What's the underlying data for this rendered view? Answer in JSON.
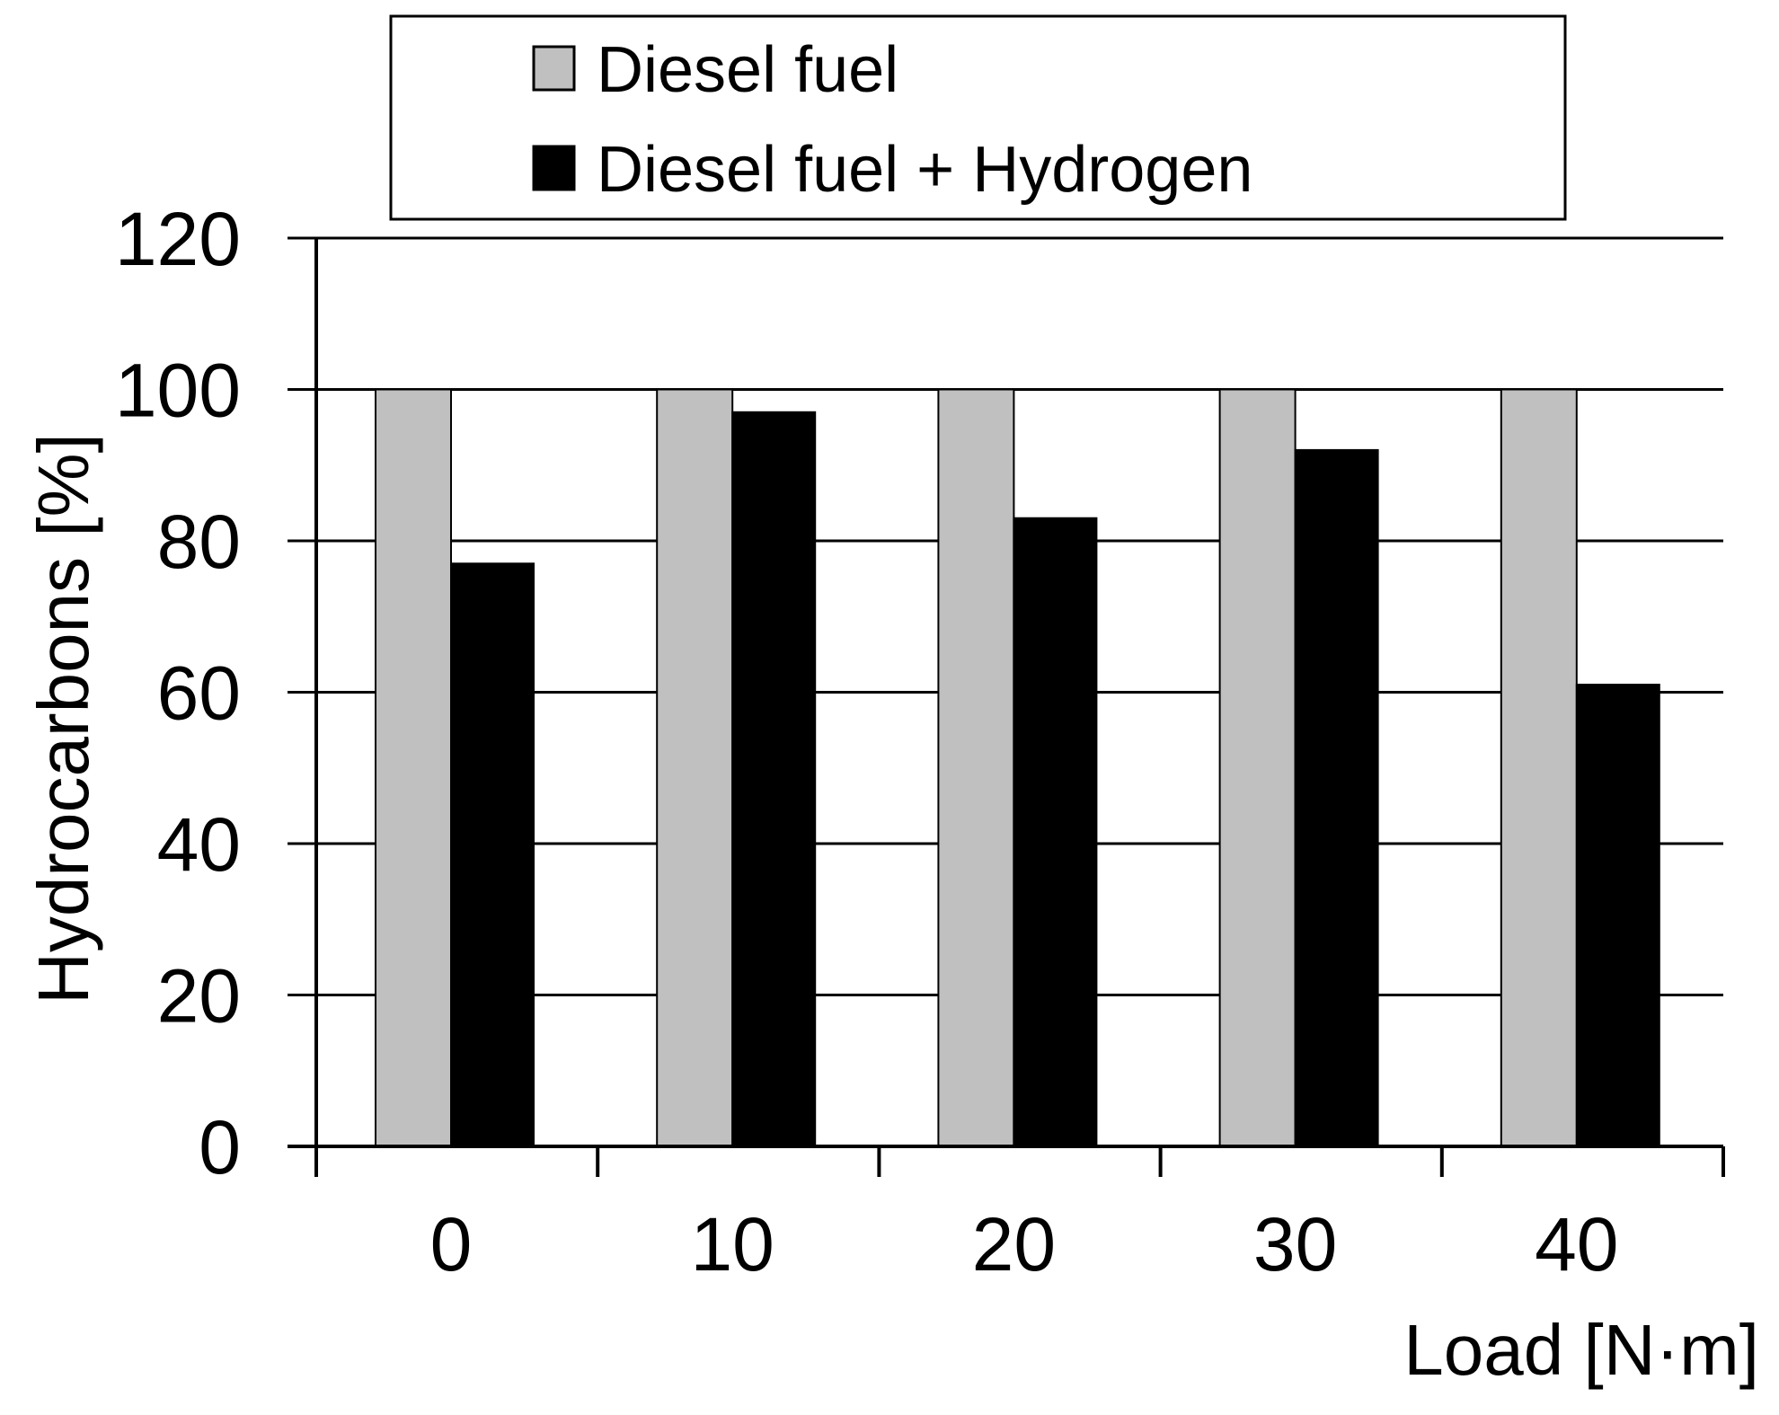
{
  "chart_data": {
    "type": "bar",
    "categories": [
      "0",
      "10",
      "20",
      "30",
      "40"
    ],
    "series": [
      {
        "name": "Diesel fuel",
        "values": [
          100,
          100,
          100,
          100,
          100
        ],
        "color": "#c0c0c0"
      },
      {
        "name": "Diesel fuel + Hydrogen",
        "values": [
          77,
          97,
          83,
          92,
          61
        ],
        "color": "#000000"
      }
    ],
    "xlabel": "Load [N·m]",
    "ylabel": "Hydrocarbons  [%]",
    "ylim": [
      0,
      120
    ],
    "yticks": [
      "0",
      "20",
      "40",
      "60",
      "80",
      "100",
      "120"
    ],
    "grid": true,
    "legend_position": "top"
  }
}
